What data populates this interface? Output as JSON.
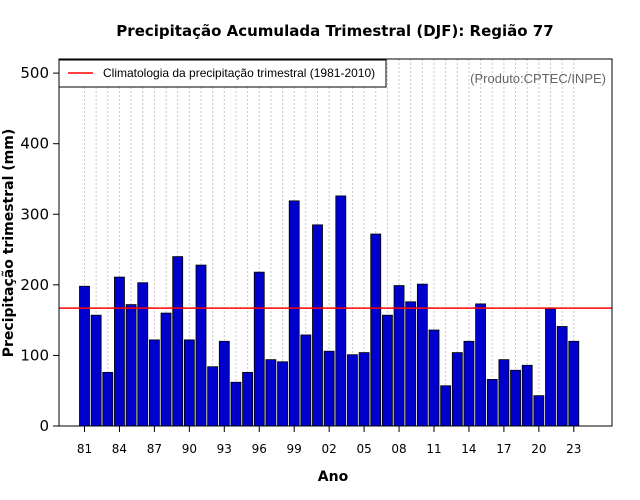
{
  "chart_data": {
    "type": "bar",
    "title": "Precipitação Acumulada Trimestral (DJF): Região 77",
    "xlabel": "Ano",
    "ylabel": "Precipitação trimestral (mm)",
    "note": "(Produto:CPTEC/INPE)",
    "legend_label": "Climatologia da precipitação trimestral (1981-2010)",
    "legend_position": "top-left",
    "ylim": [
      0,
      520
    ],
    "yticks": [
      0,
      100,
      200,
      300,
      400,
      500
    ],
    "xtick_labels": [
      "81",
      "84",
      "87",
      "90",
      "93",
      "96",
      "99",
      "02",
      "05",
      "08",
      "11",
      "14",
      "17",
      "20",
      "23"
    ],
    "xtick_indices": [
      0,
      3,
      6,
      9,
      12,
      15,
      18,
      21,
      24,
      27,
      30,
      33,
      36,
      39,
      42
    ],
    "years": [
      1981,
      1982,
      1983,
      1984,
      1985,
      1986,
      1987,
      1988,
      1989,
      1990,
      1991,
      1992,
      1993,
      1994,
      1995,
      1996,
      1997,
      1998,
      1999,
      2000,
      2001,
      2002,
      2003,
      2004,
      2005,
      2006,
      2007,
      2008,
      2009,
      2010,
      2011,
      2012,
      2013,
      2014,
      2015,
      2016,
      2017,
      2018,
      2019,
      2020,
      2021,
      2022,
      2023
    ],
    "values": [
      198,
      157,
      76,
      211,
      172,
      203,
      122,
      160,
      240,
      122,
      228,
      84,
      120,
      62,
      76,
      218,
      94,
      91,
      319,
      129,
      285,
      106,
      326,
      101,
      104,
      272,
      157,
      199,
      176,
      201,
      136,
      57,
      104,
      120,
      173,
      66,
      94,
      79,
      86,
      43,
      166,
      141,
      120
    ],
    "climatology": 167,
    "grid": "vertical dotted",
    "colors": {
      "bar": "#0000cc",
      "climatology_line": "#ff0000",
      "grid": "#c8c8c8",
      "note": "#666666"
    }
  }
}
